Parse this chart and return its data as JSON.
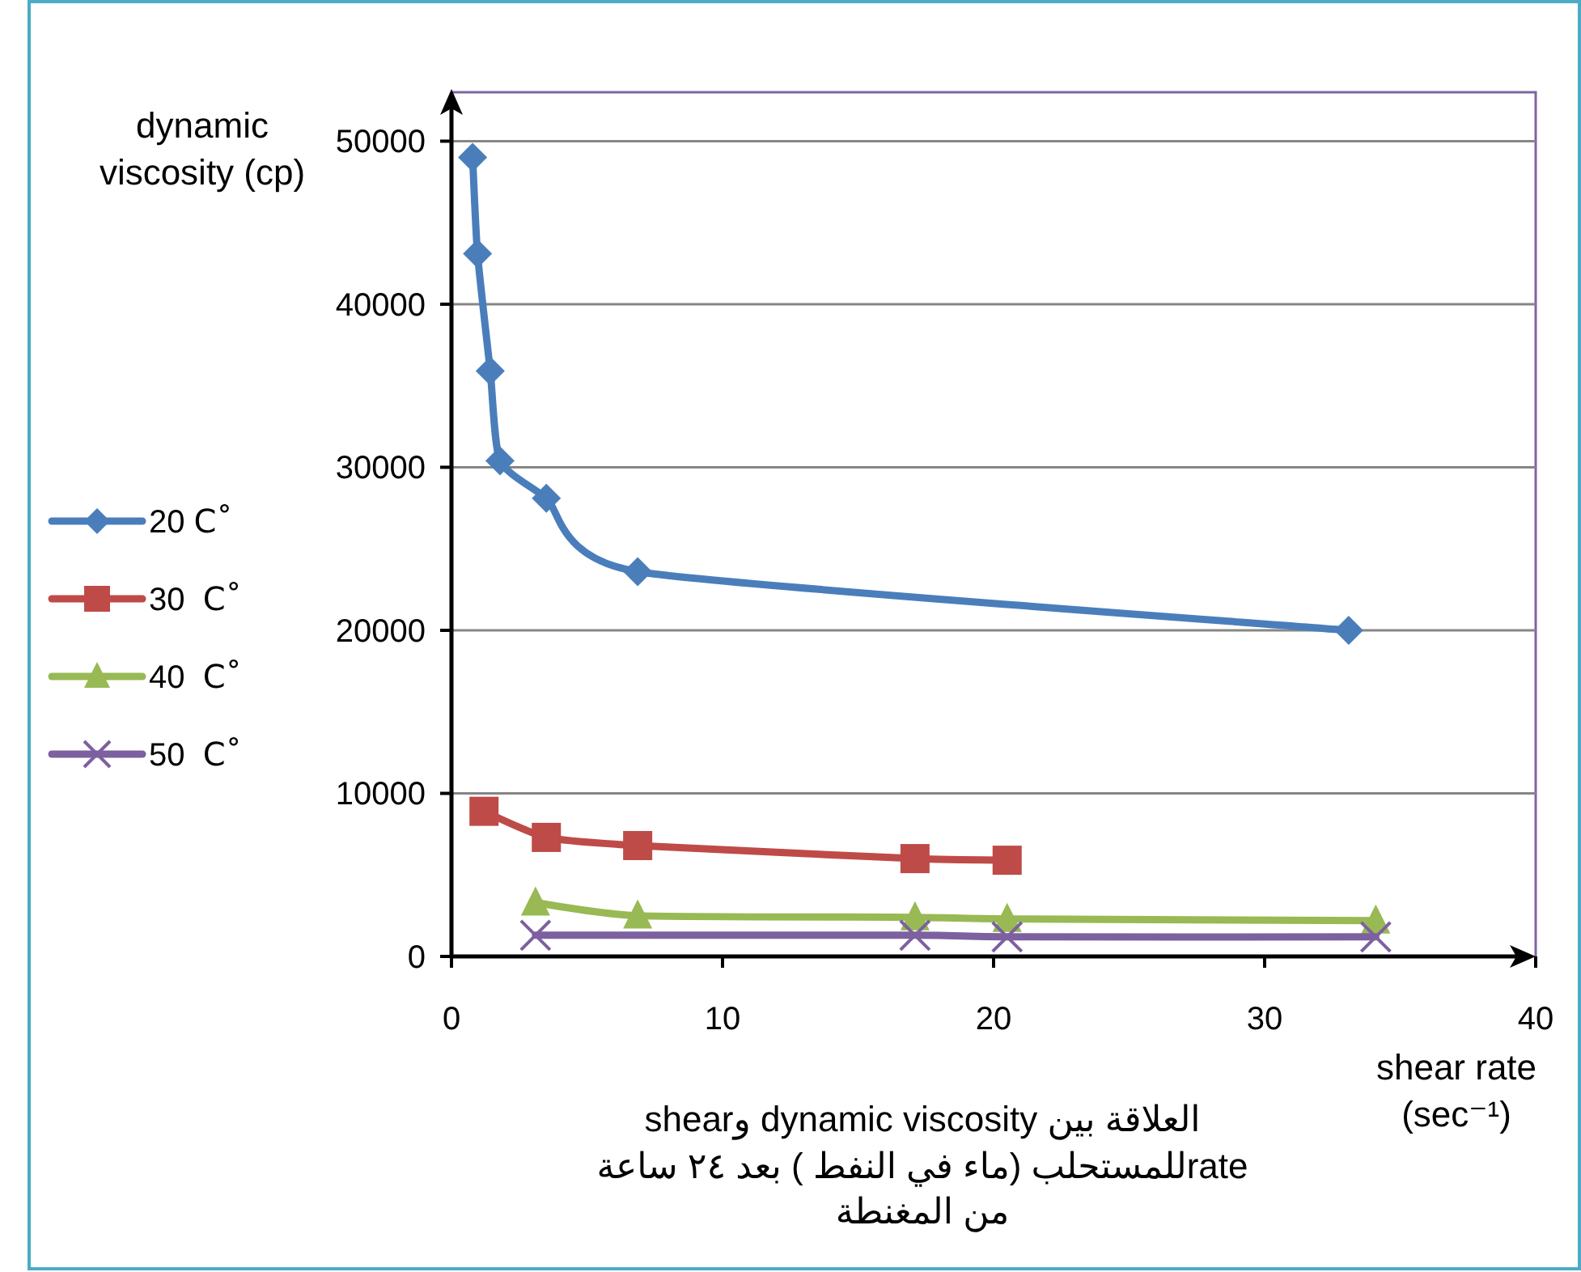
{
  "chart_data": {
    "type": "line",
    "title": "العلاقة بين dynamic viscosity وshear rateللمستحلب (ماء في النفط ) بعد ٢٤ ساعة من المغنطة",
    "xlabel": "shear rate (sec⁻¹)",
    "ylabel": "dynamic viscosity (cp)",
    "xlim": [
      0,
      40
    ],
    "xticks": [
      0,
      10,
      20,
      30,
      40
    ],
    "ylim": [
      0,
      53000
    ],
    "yticks": [
      0,
      10000,
      20000,
      30000,
      40000,
      50000
    ],
    "grid": "y",
    "legend": "left",
    "series": [
      {
        "name": "20 Cْ",
        "color": "#4a7ebb",
        "marker": "diamond",
        "x": [
          0.78,
          0.96,
          1.43,
          1.79,
          3.5,
          6.87,
          33.1
        ],
        "values": [
          49000,
          43100,
          35900,
          30400,
          28100,
          23600,
          20000
        ]
      },
      {
        "name": "30  Cْ",
        "color": "#be4b48",
        "marker": "square",
        "x": [
          1.2,
          3.5,
          6.87,
          17.1,
          20.5
        ],
        "values": [
          8900,
          7300,
          6800,
          6000,
          5900
        ]
      },
      {
        "name": "40  Cْ",
        "color": "#98b954",
        "marker": "triangle",
        "x": [
          3.1,
          6.87,
          17.1,
          20.5,
          34.1
        ],
        "values": [
          3300,
          2500,
          2400,
          2300,
          2200
        ]
      },
      {
        "name": "50  Cْ",
        "color": "#7d60a0",
        "marker": "cross",
        "x": [
          3.1,
          17.1,
          20.5,
          34.1
        ],
        "values": [
          1300,
          1300,
          1200,
          1200
        ]
      }
    ]
  }
}
